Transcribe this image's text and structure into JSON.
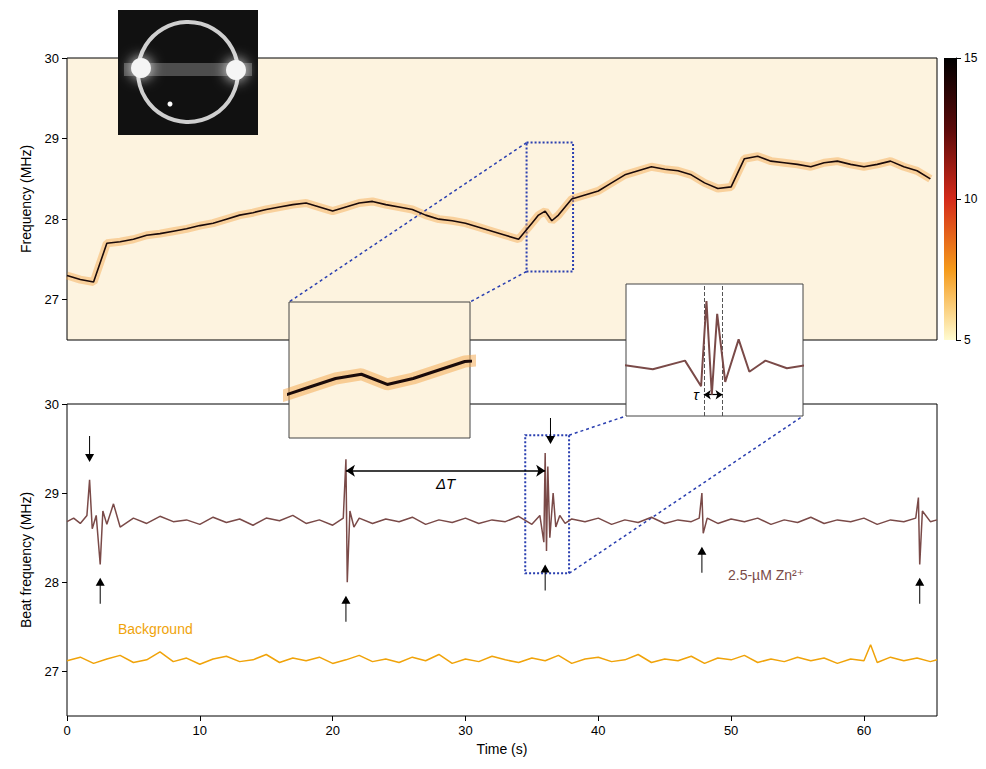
{
  "chart_data": [
    {
      "type": "line",
      "ylabel": "Frequency (MHz)",
      "x": [
        0,
        1,
        2,
        3,
        4,
        5,
        6,
        7,
        8,
        9,
        10,
        11,
        12,
        13,
        14,
        15,
        16,
        17,
        18,
        19,
        20,
        21,
        22,
        23,
        24,
        25,
        26,
        27,
        28,
        29,
        30,
        31,
        32,
        33,
        34,
        34.5,
        35,
        35.5,
        36,
        36.5,
        37,
        37.5,
        38,
        39,
        40,
        41,
        42,
        43,
        44,
        45,
        46,
        47,
        48,
        49,
        50,
        51,
        52,
        53,
        54,
        55,
        56,
        57,
        58,
        59,
        60,
        61,
        62,
        63,
        64,
        65
      ],
      "values": [
        27.3,
        27.25,
        27.22,
        27.7,
        27.72,
        27.75,
        27.8,
        27.82,
        27.85,
        27.88,
        27.92,
        27.95,
        28.0,
        28.05,
        28.08,
        28.12,
        28.15,
        28.18,
        28.2,
        28.15,
        28.1,
        28.15,
        28.2,
        28.22,
        28.18,
        28.15,
        28.12,
        28.05,
        28.0,
        27.98,
        27.95,
        27.9,
        27.85,
        27.8,
        27.75,
        27.85,
        27.95,
        28.05,
        28.1,
        27.98,
        28.05,
        28.15,
        28.25,
        28.3,
        28.35,
        28.45,
        28.55,
        28.6,
        28.65,
        28.62,
        28.6,
        28.55,
        28.45,
        28.38,
        28.4,
        28.75,
        28.78,
        28.72,
        28.7,
        28.68,
        28.65,
        28.7,
        28.72,
        28.68,
        28.65,
        28.68,
        28.72,
        28.65,
        28.6,
        28.5
      ],
      "color": "#1a0a0a",
      "xlim": [
        0,
        65.5
      ],
      "ylim": [
        26.5,
        30
      ],
      "yticks": [
        27,
        28,
        29,
        30
      ],
      "tick_labels": "y",
      "colorbar": {
        "range": [
          5,
          15
        ],
        "ticks": [
          5,
          10,
          15
        ]
      },
      "zoom_box": {
        "xlim": [
          34.6,
          38.1
        ],
        "ylim": [
          27.35,
          28.95
        ]
      }
    },
    {
      "type": "line",
      "xlabel": "Time (s)",
      "ylabel": "Beat frequency (MHz)",
      "xlim": [
        0,
        65.5
      ],
      "xticks": [
        0,
        10,
        20,
        30,
        40,
        50,
        60
      ],
      "ylim": [
        26.5,
        30
      ],
      "yticks": [
        27,
        28,
        29,
        30
      ],
      "series": [
        {
          "name": "2.5-µM Zn²⁺",
          "color": "#7a4a48",
          "x": [
            0,
            0.5,
            1,
            1.5,
            1.7,
            1.9,
            2.2,
            2.5,
            2.7,
            3,
            3.5,
            4,
            5,
            6,
            7,
            8,
            9,
            10,
            11,
            12,
            13,
            14,
            15,
            16,
            17,
            18,
            19,
            20,
            20.8,
            21,
            21.1,
            21.3,
            21.6,
            22,
            23,
            24,
            25,
            26,
            27,
            28,
            29,
            30,
            31,
            32,
            33,
            34,
            35,
            35.6,
            35.9,
            36,
            36.1,
            36.2,
            36.35,
            36.6,
            36.8,
            37.1,
            37.5,
            38,
            39,
            40,
            41,
            42,
            43,
            44,
            45,
            46,
            47,
            47.6,
            47.8,
            47.9,
            48.2,
            49,
            50,
            51,
            52,
            53,
            54,
            55,
            56,
            57,
            58,
            59,
            60,
            61,
            62,
            63,
            63.9,
            64.1,
            64.2,
            64.4,
            65,
            65.5
          ],
          "values": [
            28.68,
            28.72,
            28.66,
            28.75,
            29.15,
            28.6,
            28.75,
            28.2,
            28.8,
            28.65,
            28.88,
            28.62,
            28.72,
            28.66,
            28.74,
            28.68,
            28.7,
            28.65,
            28.73,
            28.67,
            28.71,
            28.64,
            28.72,
            28.69,
            28.75,
            28.66,
            28.7,
            28.64,
            28.72,
            29.38,
            28.0,
            28.8,
            28.62,
            28.72,
            28.66,
            28.71,
            28.68,
            28.73,
            28.65,
            28.7,
            28.67,
            28.72,
            28.66,
            28.7,
            28.68,
            28.74,
            28.65,
            28.75,
            28.45,
            29.45,
            28.35,
            29.3,
            28.5,
            29.0,
            28.62,
            28.75,
            28.66,
            28.71,
            28.68,
            28.72,
            28.65,
            28.7,
            28.67,
            28.73,
            28.66,
            28.7,
            28.68,
            28.72,
            29.0,
            28.55,
            28.72,
            28.66,
            28.71,
            28.68,
            28.72,
            28.65,
            28.7,
            28.67,
            28.73,
            28.66,
            28.7,
            28.68,
            28.72,
            28.65,
            28.7,
            28.68,
            28.72,
            28.95,
            28.2,
            28.8,
            28.68,
            28.7
          ]
        },
        {
          "name": "Background",
          "color": "#f0a30a",
          "x": [
            0,
            1,
            2,
            3,
            4,
            5,
            6,
            7,
            8,
            9,
            10,
            11,
            12,
            13,
            14,
            15,
            16,
            17,
            18,
            19,
            20,
            21,
            22,
            23,
            24,
            25,
            26,
            27,
            28,
            29,
            30,
            31,
            32,
            33,
            34,
            35,
            36,
            37,
            38,
            39,
            40,
            41,
            42,
            43,
            44,
            45,
            46,
            47,
            48,
            49,
            50,
            51,
            52,
            53,
            54,
            55,
            56,
            57,
            58,
            59,
            60,
            60.5,
            61,
            62,
            63,
            64,
            65,
            65.5
          ],
          "values": [
            27.12,
            27.16,
            27.09,
            27.14,
            27.18,
            27.1,
            27.13,
            27.22,
            27.11,
            27.15,
            27.08,
            27.14,
            27.17,
            27.11,
            27.13,
            27.19,
            27.1,
            27.15,
            27.12,
            27.16,
            27.09,
            27.13,
            27.18,
            27.11,
            27.14,
            27.1,
            27.16,
            27.12,
            27.19,
            27.09,
            27.14,
            27.11,
            27.17,
            27.13,
            27.1,
            27.15,
            27.12,
            27.18,
            27.09,
            27.14,
            27.16,
            27.11,
            27.13,
            27.19,
            27.1,
            27.14,
            27.12,
            27.17,
            27.09,
            27.15,
            27.13,
            27.18,
            27.1,
            27.14,
            27.11,
            27.16,
            27.12,
            27.15,
            27.09,
            27.14,
            27.12,
            27.3,
            27.1,
            27.16,
            27.12,
            27.15,
            27.11,
            27.13
          ]
        }
      ],
      "arrows": [
        {
          "x": 1.7,
          "y": 29.35,
          "marker": "arrow_down"
        },
        {
          "x": 36.4,
          "y": 29.55,
          "marker": "arrow_down"
        },
        {
          "x": 2.5,
          "y": 28.05,
          "marker": "arrow_up"
        },
        {
          "x": 21,
          "y": 27.85,
          "marker": "arrow_up"
        },
        {
          "x": 36,
          "y": 28.2,
          "marker": "arrow_up"
        },
        {
          "x": 47.8,
          "y": 28.4,
          "marker": "arrow_up"
        },
        {
          "x": 64.2,
          "y": 28.05,
          "marker": "arrow_up"
        }
      ],
      "interval": {
        "label": "ΔT",
        "x": [
          21,
          36
        ],
        "y": 29.25
      },
      "zoom_box": {
        "xlim": [
          34.5,
          37.8
        ],
        "ylim": [
          28.1,
          29.65
        ]
      },
      "tau": {
        "label": "τ",
        "x": [
          35.95,
          36.3
        ],
        "y": 28.35
      }
    }
  ]
}
